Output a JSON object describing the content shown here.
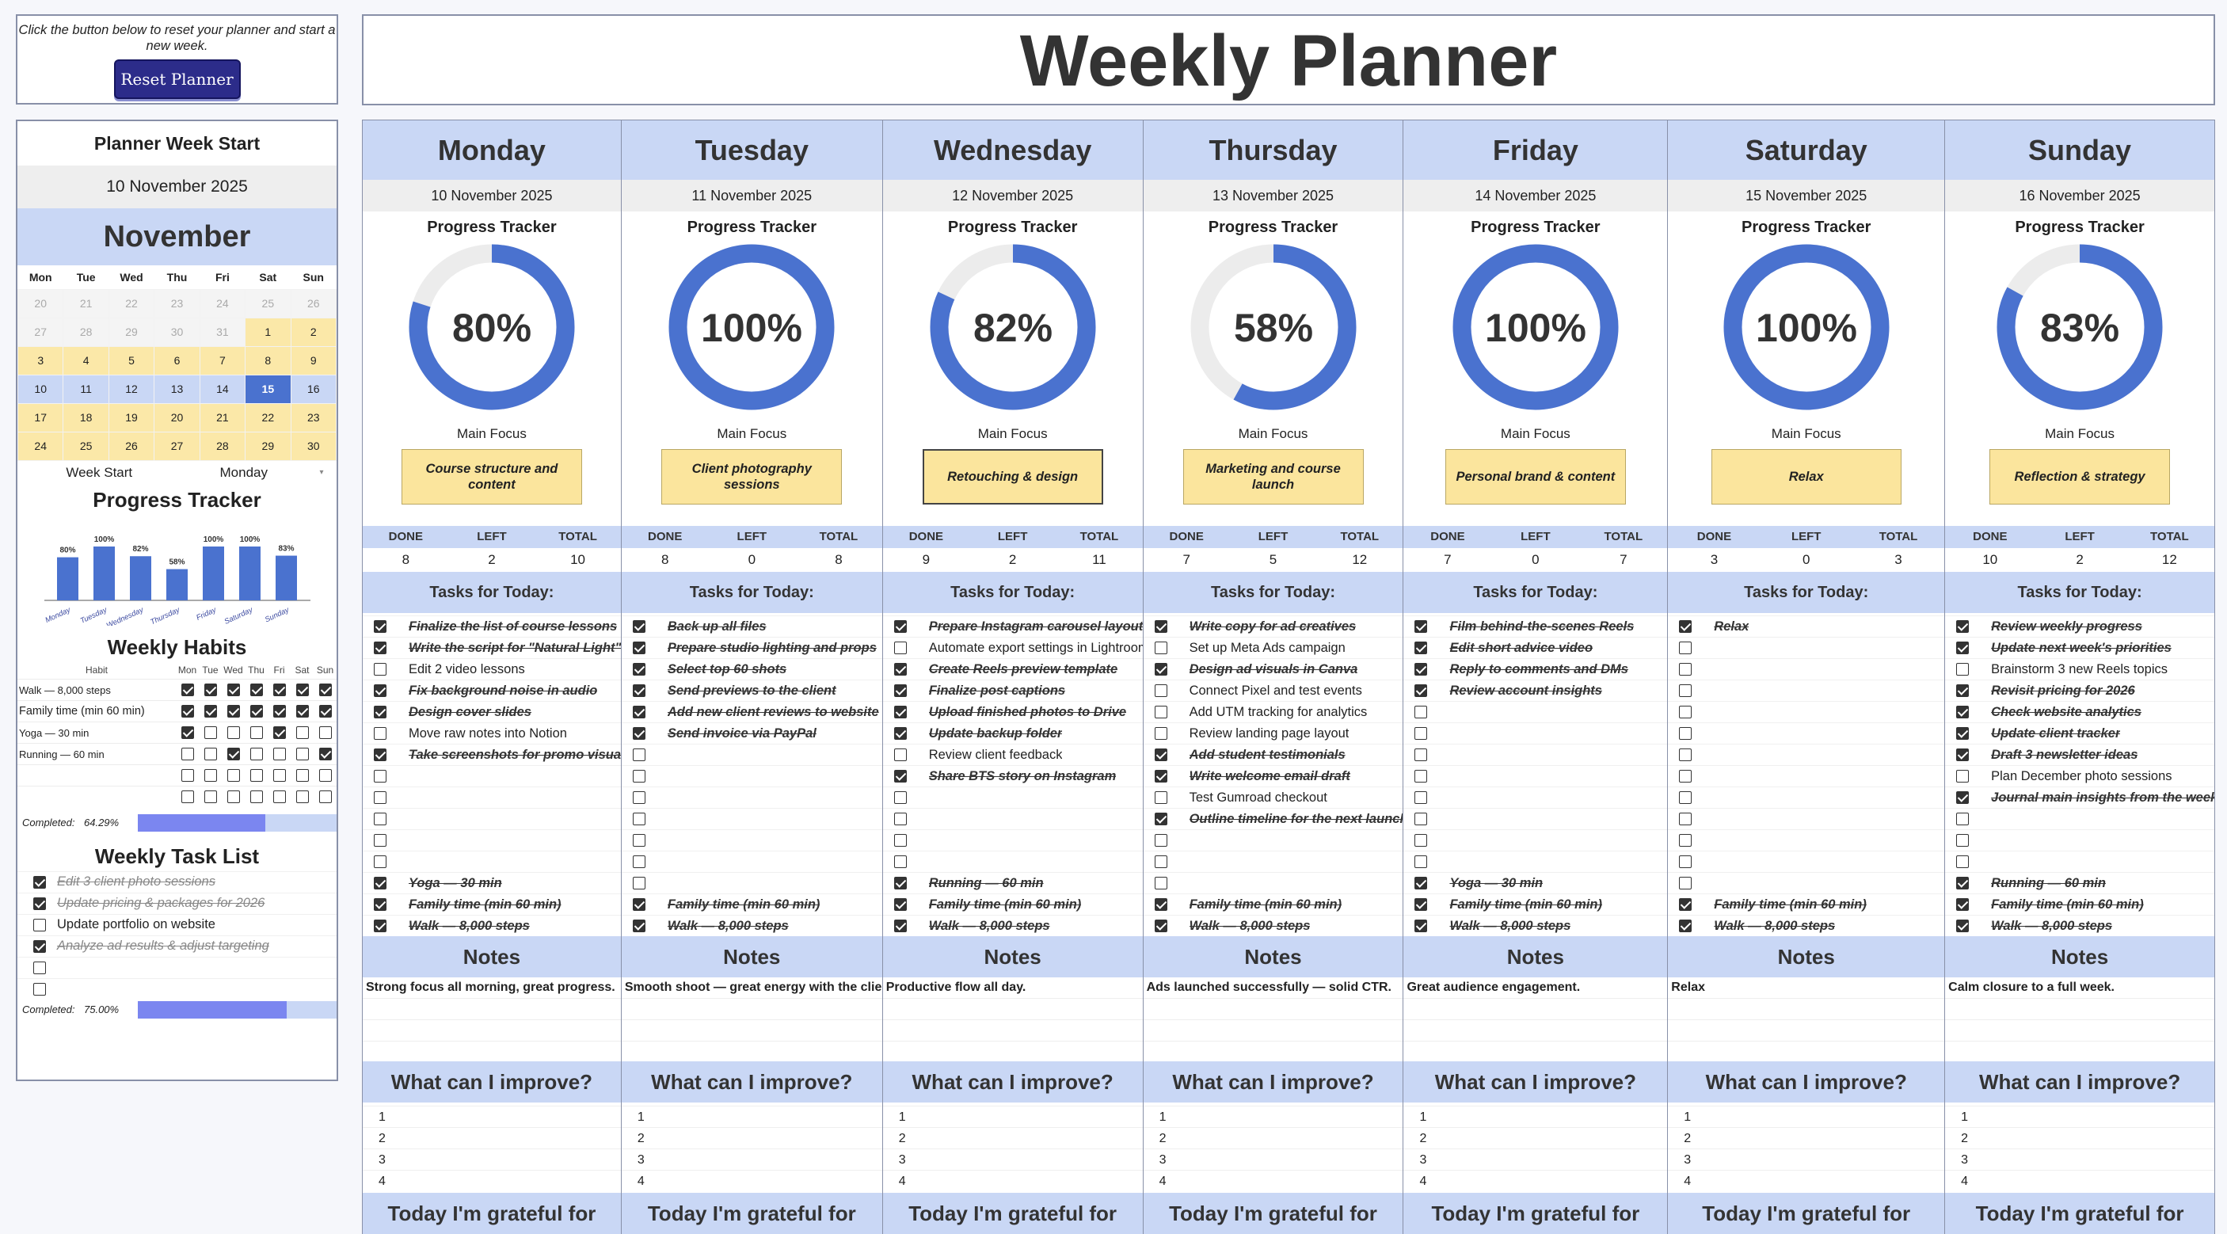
{
  "reset": {
    "message": "Click the button below to reset your planner and start a new week.",
    "button_label": "Reset Planner"
  },
  "title": "Weekly Planner",
  "sidebar": {
    "week_start_title": "Planner Week Start",
    "week_start_date": "10 November 2025",
    "month": "November",
    "weekday_headers": [
      "Mon",
      "Tue",
      "Wed",
      "Thu",
      "Fri",
      "Sat",
      "Sun"
    ],
    "calendar_rows": [
      [
        "20",
        "21",
        "22",
        "23",
        "24",
        "25",
        "26"
      ],
      [
        "27",
        "28",
        "29",
        "30",
        "31",
        "1",
        "2"
      ],
      [
        "3",
        "4",
        "5",
        "6",
        "7",
        "8",
        "9"
      ],
      [
        "10",
        "11",
        "12",
        "13",
        "14",
        "15",
        "16"
      ],
      [
        "17",
        "18",
        "19",
        "20",
        "21",
        "22",
        "23"
      ],
      [
        "24",
        "25",
        "26",
        "27",
        "28",
        "29",
        "30"
      ]
    ],
    "highlight_day": "15",
    "week_start_label": "Week Start",
    "week_start_value": "Monday",
    "progress_title": "Progress Tracker",
    "weekly_habits_title": "Weekly Habits",
    "habit_header": "Habit",
    "habits": [
      {
        "name": "Walk — 8,000 steps",
        "checks": [
          true,
          true,
          true,
          true,
          true,
          true,
          true
        ]
      },
      {
        "name": "Family time (min 60 min)",
        "checks": [
          true,
          true,
          true,
          true,
          true,
          true,
          true
        ]
      },
      {
        "name": "Yoga — 30 min",
        "checks": [
          true,
          false,
          false,
          false,
          true,
          false,
          false
        ]
      },
      {
        "name": "Running — 60 min",
        "checks": [
          false,
          false,
          true,
          false,
          false,
          false,
          true
        ]
      },
      {
        "name": "",
        "checks": [
          false,
          false,
          false,
          false,
          false,
          false,
          false
        ]
      },
      {
        "name": "",
        "checks": [
          false,
          false,
          false,
          false,
          false,
          false,
          false
        ]
      }
    ],
    "habits_completed_label": "Completed:",
    "habits_completed": "64.29%",
    "habits_completed_fraction": 0.6429,
    "task_list_title": "Weekly Task List",
    "task_list": [
      {
        "text": "Edit 3 client photo sessions",
        "done": true
      },
      {
        "text": "Update pricing & packages for 2026",
        "done": true
      },
      {
        "text": "Update portfolio on website",
        "done": false
      },
      {
        "text": "Analyze ad results & adjust targeting",
        "done": true
      },
      {
        "text": "",
        "done": false
      },
      {
        "text": "",
        "done": false
      }
    ],
    "tasks_completed_label": "Completed:",
    "tasks_completed": "75.00%",
    "tasks_completed_fraction": 0.75
  },
  "chart_data": {
    "type": "bar",
    "title": "Progress Tracker",
    "categories": [
      "Monday",
      "Tuesday",
      "Wednesday",
      "Thursday",
      "Friday",
      "Saturday",
      "Sunday"
    ],
    "values": [
      80,
      100,
      82,
      58,
      100,
      100,
      83
    ],
    "labels": [
      "80%",
      "100%",
      "82%",
      "58%",
      "100%",
      "100%",
      "83%"
    ],
    "ylim": [
      0,
      100
    ],
    "color": "#4a72cf"
  },
  "labels": {
    "progress_tracker": "Progress Tracker",
    "main_focus": "Main Focus",
    "done": "DONE",
    "left": "LEFT",
    "total": "TOTAL",
    "tasks_for_today": "Tasks for Today:",
    "notes": "Notes",
    "improve": "What can I improve?",
    "grateful": "Today I'm grateful for"
  },
  "colors": {
    "accent": "#4a72cf",
    "header": "#c9d7f5",
    "focus": "#fbe59d",
    "dark_button": "#2c2c8a"
  },
  "days": [
    {
      "name": "Monday",
      "date": "10 November 2025",
      "progress": 80,
      "progress_label": "80%",
      "focus": "Course structure and content",
      "focus_selected": false,
      "done": "8",
      "left": "2",
      "total": "10",
      "tasks": [
        {
          "text": "Finalize the list of course lessons",
          "done": true
        },
        {
          "text": "Write the script for \"Natural Light\"",
          "done": true
        },
        {
          "text": "Edit 2 video lessons",
          "done": false
        },
        {
          "text": "Fix background noise in audio",
          "done": true
        },
        {
          "text": "Design cover slides",
          "done": true
        },
        {
          "text": "Move raw notes into Notion",
          "done": false
        },
        {
          "text": "Take screenshots for promo visuals",
          "done": true
        },
        {
          "text": "",
          "done": false
        },
        {
          "text": "",
          "done": false
        },
        {
          "text": "",
          "done": false
        },
        {
          "text": "",
          "done": false
        },
        {
          "text": "",
          "done": false
        },
        {
          "text": "Yoga — 30 min",
          "done": true
        },
        {
          "text": "Family time (min 60 min)",
          "done": true
        },
        {
          "text": "Walk — 8,000 steps",
          "done": true
        }
      ],
      "note": "Strong focus all morning, great progress."
    },
    {
      "name": "Tuesday",
      "date": "11 November 2025",
      "progress": 100,
      "progress_label": "100%",
      "focus": "Client photography sessions",
      "focus_selected": false,
      "done": "8",
      "left": "0",
      "total": "8",
      "tasks": [
        {
          "text": "Back up all files",
          "done": true
        },
        {
          "text": "Prepare studio lighting and props",
          "done": true
        },
        {
          "text": "Select top 60 shots",
          "done": true
        },
        {
          "text": "Send previews to the client",
          "done": true
        },
        {
          "text": "Add new client reviews to website",
          "done": true
        },
        {
          "text": "Send invoice via PayPal",
          "done": true
        },
        {
          "text": "",
          "done": false
        },
        {
          "text": "",
          "done": false
        },
        {
          "text": "",
          "done": false
        },
        {
          "text": "",
          "done": false
        },
        {
          "text": "",
          "done": false
        },
        {
          "text": "",
          "done": false
        },
        {
          "text": "",
          "done": false
        },
        {
          "text": "Family time (min 60 min)",
          "done": true
        },
        {
          "text": "Walk — 8,000 steps",
          "done": true
        }
      ],
      "note": "Smooth shoot — great energy with the client."
    },
    {
      "name": "Wednesday",
      "date": "12 November 2025",
      "progress": 82,
      "progress_label": "82%",
      "focus": "Retouching & design",
      "focus_selected": true,
      "done": "9",
      "left": "2",
      "total": "11",
      "tasks": [
        {
          "text": "Prepare Instagram carousel layout",
          "done": true
        },
        {
          "text": "Automate export settings in Lightroom",
          "done": false
        },
        {
          "text": "Create Reels preview template",
          "done": true
        },
        {
          "text": "Finalize post captions",
          "done": true
        },
        {
          "text": "Upload finished photos to Drive",
          "done": true
        },
        {
          "text": "Update backup folder",
          "done": true
        },
        {
          "text": "Review client feedback",
          "done": false
        },
        {
          "text": "Share BTS story on Instagram",
          "done": true
        },
        {
          "text": "",
          "done": false
        },
        {
          "text": "",
          "done": false
        },
        {
          "text": "",
          "done": false
        },
        {
          "text": "",
          "done": false
        },
        {
          "text": "Running — 60 min",
          "done": true
        },
        {
          "text": "Family time (min 60 min)",
          "done": true
        },
        {
          "text": "Walk — 8,000 steps",
          "done": true
        }
      ],
      "note": "Productive flow all day."
    },
    {
      "name": "Thursday",
      "date": "13 November 2025",
      "progress": 58,
      "progress_label": "58%",
      "focus": "Marketing and course launch",
      "focus_selected": false,
      "done": "7",
      "left": "5",
      "total": "12",
      "tasks": [
        {
          "text": "Write copy for ad creatives",
          "done": true
        },
        {
          "text": "Set up Meta Ads campaign",
          "done": false
        },
        {
          "text": "Design ad visuals in Canva",
          "done": true
        },
        {
          "text": "Connect Pixel and test events",
          "done": false
        },
        {
          "text": "Add UTM tracking for analytics",
          "done": false
        },
        {
          "text": "Review landing page layout",
          "done": false
        },
        {
          "text": "Add student testimonials",
          "done": true
        },
        {
          "text": "Write welcome email draft",
          "done": true
        },
        {
          "text": "Test Gumroad checkout",
          "done": false
        },
        {
          "text": "Outline timeline for the next launch",
          "done": true
        },
        {
          "text": "",
          "done": false
        },
        {
          "text": "",
          "done": false
        },
        {
          "text": "",
          "done": false
        },
        {
          "text": "Family time (min 60 min)",
          "done": true
        },
        {
          "text": "Walk — 8,000 steps",
          "done": true
        }
      ],
      "note": "Ads launched successfully — solid CTR."
    },
    {
      "name": "Friday",
      "date": "14 November 2025",
      "progress": 100,
      "progress_label": "100%",
      "focus": "Personal brand & content",
      "focus_selected": false,
      "done": "7",
      "left": "0",
      "total": "7",
      "tasks": [
        {
          "text": "Film behind-the-scenes Reels",
          "done": true
        },
        {
          "text": "Edit short advice video",
          "done": true
        },
        {
          "text": "Reply to comments and DMs",
          "done": true
        },
        {
          "text": "Review account insights",
          "done": true
        },
        {
          "text": "",
          "done": false
        },
        {
          "text": "",
          "done": false
        },
        {
          "text": "",
          "done": false
        },
        {
          "text": "",
          "done": false
        },
        {
          "text": "",
          "done": false
        },
        {
          "text": "",
          "done": false
        },
        {
          "text": "",
          "done": false
        },
        {
          "text": "",
          "done": false
        },
        {
          "text": "Yoga — 30 min",
          "done": true
        },
        {
          "text": "Family time (min 60 min)",
          "done": true
        },
        {
          "text": "Walk — 8,000 steps",
          "done": true
        }
      ],
      "note": "Great audience engagement."
    },
    {
      "name": "Saturday",
      "date": "15 November 2025",
      "progress": 100,
      "progress_label": "100%",
      "focus": "Relax",
      "focus_selected": false,
      "done": "3",
      "left": "0",
      "total": "3",
      "tasks": [
        {
          "text": "Relax",
          "done": true
        },
        {
          "text": "",
          "done": false
        },
        {
          "text": "",
          "done": false
        },
        {
          "text": "",
          "done": false
        },
        {
          "text": "",
          "done": false
        },
        {
          "text": "",
          "done": false
        },
        {
          "text": "",
          "done": false
        },
        {
          "text": "",
          "done": false
        },
        {
          "text": "",
          "done": false
        },
        {
          "text": "",
          "done": false
        },
        {
          "text": "",
          "done": false
        },
        {
          "text": "",
          "done": false
        },
        {
          "text": "",
          "done": false
        },
        {
          "text": "Family time (min 60 min)",
          "done": true
        },
        {
          "text": "Walk — 8,000 steps",
          "done": true
        }
      ],
      "note": "Relax"
    },
    {
      "name": "Sunday",
      "date": "16 November 2025",
      "progress": 83,
      "progress_label": "83%",
      "focus": "Reflection & strategy",
      "focus_selected": false,
      "done": "10",
      "left": "2",
      "total": "12",
      "tasks": [
        {
          "text": "Review weekly progress",
          "done": true
        },
        {
          "text": "Update next week's priorities",
          "done": true
        },
        {
          "text": "Brainstorm 3 new Reels topics",
          "done": false
        },
        {
          "text": "Revisit pricing for 2026",
          "done": true
        },
        {
          "text": "Check website analytics",
          "done": true
        },
        {
          "text": "Update client tracker",
          "done": true
        },
        {
          "text": "Draft 3 newsletter ideas",
          "done": true
        },
        {
          "text": "Plan December photo sessions",
          "done": false
        },
        {
          "text": "Journal main insights from the week",
          "done": true
        },
        {
          "text": "",
          "done": false
        },
        {
          "text": "",
          "done": false
        },
        {
          "text": "",
          "done": false
        },
        {
          "text": "Running — 60 min",
          "done": true
        },
        {
          "text": "Family time (min 60 min)",
          "done": true
        },
        {
          "text": "Walk — 8,000 steps",
          "done": true
        }
      ],
      "note": "Calm closure to a full week."
    }
  ],
  "improve_numbers": [
    "1",
    "2",
    "3",
    "4"
  ]
}
